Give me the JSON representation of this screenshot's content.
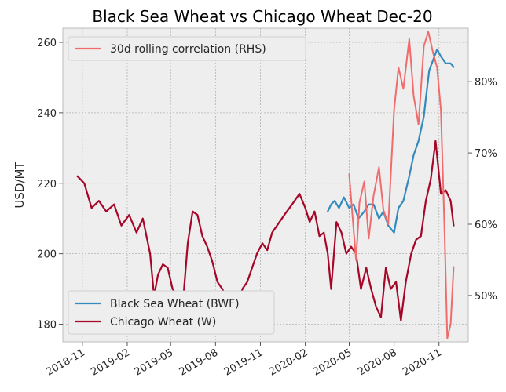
{
  "chart_data": {
    "type": "line",
    "title": "Black Sea Wheat vs Chicago Wheat Dec-20",
    "ylabel": "USD/MT",
    "y2label": "",
    "xlim": [
      "2018-09-22",
      "2020-12-31"
    ],
    "ylim": [
      175,
      264
    ],
    "y2lim": [
      43.5,
      87.5
    ],
    "x_ticks": [
      "2018-11-01",
      "2019-02-01",
      "2019-05-01",
      "2019-08-01",
      "2019-11-01",
      "2020-02-01",
      "2020-05-01",
      "2020-08-01",
      "2020-11-01"
    ],
    "x_tick_labels": [
      "2018-11",
      "2019-02",
      "2019-05",
      "2019-08",
      "2019-11",
      "2020-02",
      "2020-05",
      "2020-08",
      "2020-11"
    ],
    "y_ticks": [
      180,
      200,
      220,
      240,
      260
    ],
    "y2_ticks": [
      50,
      60,
      70,
      80
    ],
    "y2_tick_labels": [
      "50%",
      "60%",
      "70%",
      "80%"
    ],
    "grid": true,
    "legends": [
      {
        "placement": "top-left",
        "entries": [
          "30d rolling correlation (RHS)"
        ]
      },
      {
        "placement": "bottom-left",
        "entries": [
          "Black Sea Wheat (BWF)",
          "Chicago Wheat (W)"
        ]
      }
    ],
    "series": [
      {
        "name": "Chicago Wheat (W)",
        "color": "#a60628",
        "axis": "left",
        "x": [
          "2018-10-22",
          "2018-11-05",
          "2018-11-20",
          "2018-12-05",
          "2018-12-20",
          "2019-01-05",
          "2019-01-20",
          "2019-02-05",
          "2019-02-20",
          "2019-03-05",
          "2019-03-20",
          "2019-03-28",
          "2019-04-05",
          "2019-04-15",
          "2019-04-25",
          "2019-05-05",
          "2019-05-15",
          "2019-05-25",
          "2019-06-05",
          "2019-06-15",
          "2019-06-25",
          "2019-07-05",
          "2019-07-15",
          "2019-07-25",
          "2019-08-05",
          "2019-08-15",
          "2019-08-25",
          "2019-09-05",
          "2019-09-15",
          "2019-09-25",
          "2019-10-05",
          "2019-10-15",
          "2019-10-25",
          "2019-11-05",
          "2019-11-15",
          "2019-11-25",
          "2019-12-05",
          "2019-12-20",
          "2020-01-05",
          "2020-01-20",
          "2020-02-01",
          "2020-02-10",
          "2020-02-20",
          "2020-03-01",
          "2020-03-10",
          "2020-03-18",
          "2020-03-25",
          "2020-04-05",
          "2020-04-15",
          "2020-04-25",
          "2020-05-05",
          "2020-05-15",
          "2020-05-25",
          "2020-06-05",
          "2020-06-15",
          "2020-06-25",
          "2020-07-05",
          "2020-07-15",
          "2020-07-25",
          "2020-08-05",
          "2020-08-15",
          "2020-08-25",
          "2020-09-05",
          "2020-09-15",
          "2020-09-25",
          "2020-10-05",
          "2020-10-15",
          "2020-10-25",
          "2020-11-05",
          "2020-11-15",
          "2020-11-25",
          "2020-12-01"
        ],
        "values": [
          222,
          220,
          213,
          215,
          212,
          214,
          208,
          211,
          206,
          210,
          200,
          188,
          194,
          197,
          196,
          190,
          188,
          184,
          203,
          212,
          211,
          205,
          202,
          198,
          192,
          190,
          187,
          181,
          183,
          190,
          192,
          196,
          200,
          203,
          201,
          206,
          208,
          211,
          214,
          217,
          213,
          209,
          212,
          205,
          206,
          200,
          190,
          209,
          206,
          200,
          202,
          200,
          190,
          196,
          190,
          185,
          182,
          196,
          190,
          192,
          181,
          192,
          200,
          204,
          205,
          215,
          221,
          232,
          217,
          218,
          215,
          208
        ],
        "linewidth": 2.2
      },
      {
        "name": "Black Sea Wheat (BWF)",
        "color": "#348abd",
        "axis": "left",
        "x": [
          "2020-03-18",
          "2020-03-25",
          "2020-04-01",
          "2020-04-10",
          "2020-04-20",
          "2020-05-01",
          "2020-05-10",
          "2020-05-20",
          "2020-06-01",
          "2020-06-10",
          "2020-06-20",
          "2020-07-01",
          "2020-07-10",
          "2020-07-20",
          "2020-08-01",
          "2020-08-10",
          "2020-08-20",
          "2020-09-01",
          "2020-09-10",
          "2020-09-20",
          "2020-10-01",
          "2020-10-05",
          "2020-10-12",
          "2020-10-20",
          "2020-10-28",
          "2020-11-05",
          "2020-11-15",
          "2020-11-25",
          "2020-12-01"
        ],
        "values": [
          212,
          214,
          215,
          213,
          216,
          213,
          214,
          210,
          212,
          214,
          214,
          210,
          212,
          208,
          206,
          213,
          215,
          222,
          228,
          232,
          239,
          244,
          252,
          255,
          258,
          256,
          254,
          254,
          253
        ],
        "linewidth": 2.2
      },
      {
        "name": "30d rolling correlation (RHS)",
        "color": "#f06c6c",
        "axis": "right",
        "x": [
          "2020-05-01",
          "2020-05-08",
          "2020-05-15",
          "2020-05-22",
          "2020-06-01",
          "2020-06-10",
          "2020-06-20",
          "2020-07-01",
          "2020-07-10",
          "2020-07-20",
          "2020-08-01",
          "2020-08-10",
          "2020-08-20",
          "2020-09-01",
          "2020-09-10",
          "2020-09-20",
          "2020-10-01",
          "2020-10-10",
          "2020-10-20",
          "2020-10-28",
          "2020-11-05",
          "2020-11-12",
          "2020-11-18",
          "2020-11-25",
          "2020-12-01"
        ],
        "values": [
          67,
          61,
          55,
          63,
          66,
          58,
          64,
          68,
          62,
          60,
          76,
          82,
          79,
          86,
          78,
          74,
          85,
          87,
          84,
          82,
          76,
          60,
          44,
          46,
          54
        ],
        "linewidth": 2.0
      }
    ]
  }
}
